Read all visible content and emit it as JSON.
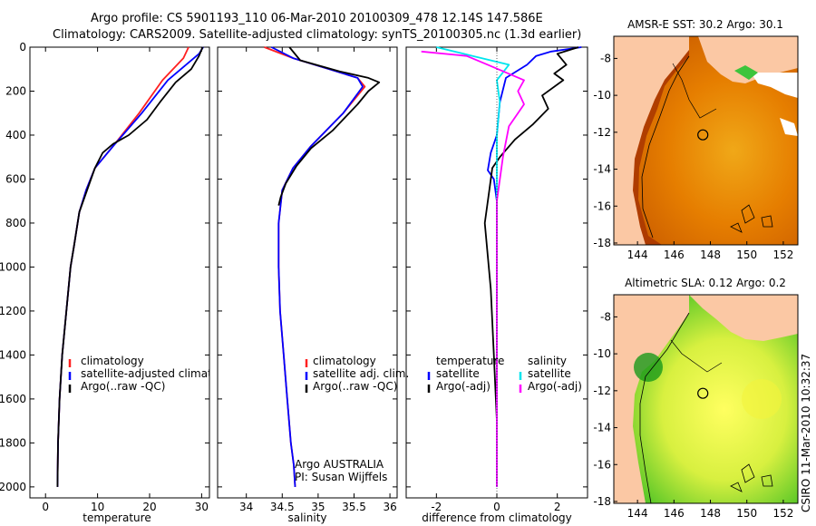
{
  "header": {
    "line1": "Argo profile: CS 5901193_110 06-Mar-2010 20100309_478 12.14S 147.586E",
    "line2": "Climatology: CARS2009. Satellite-adjusted climatology: synTS_20100305.nc (1.3d earlier)"
  },
  "stamp": "CSIRO 11-Mar-2010 10:32:37",
  "colors": {
    "climatology": "#ff2020",
    "satellite_adjusted": "#0000ff",
    "argo": "#000000",
    "salinity_satellite": "#00e5ee",
    "salinity_argo": "#ff00ff",
    "land": "#fbc8a4",
    "sst_warm": "#a83500",
    "sst_mid": "#e67e00",
    "sst_cool": "#f0a818",
    "sla_high": "#ffff60",
    "sla_low": "#1a9a1a"
  },
  "chart_data": [
    {
      "type": "line",
      "id": "temperature",
      "xlabel": "temperature",
      "ylabel": "",
      "xlim": [
        -3,
        31.5
      ],
      "ylim": [
        0,
        2050
      ],
      "yreversed": true,
      "xticks": [
        0,
        10,
        20,
        30
      ],
      "yticks": [
        0,
        200,
        400,
        600,
        800,
        1000,
        1200,
        1400,
        1600,
        1800,
        2000
      ],
      "legend": [
        "climatology",
        "satellite-adjusted climatology",
        "Argo(..raw -QC)"
      ],
      "legend_position": "bottom-right",
      "series": [
        {
          "name": "climatology",
          "color_key": "climatology",
          "x": [
            27.5,
            26.5,
            22.5,
            18,
            13,
            9.5,
            7.8,
            6.5,
            5.5,
            4.8,
            4,
            3.2,
            2.7,
            2.4,
            2.3
          ],
          "y": [
            0,
            50,
            150,
            300,
            450,
            550,
            650,
            750,
            900,
            1000,
            1200,
            1400,
            1600,
            1800,
            2000
          ]
        },
        {
          "name": "satellite-adjusted climatology",
          "color_key": "satellite_adjusted",
          "x": [
            30.3,
            29.5,
            23.5,
            18.5,
            13,
            9.5,
            7.8,
            6.5,
            5.5,
            4.8,
            4,
            3.2,
            2.7,
            2.4,
            2.3
          ],
          "y": [
            0,
            30,
            150,
            300,
            450,
            550,
            650,
            750,
            900,
            1000,
            1200,
            1400,
            1600,
            1800,
            2000
          ]
        },
        {
          "name": "Argo(..raw -QC)",
          "color_key": "argo",
          "x": [
            30.2,
            29.5,
            28,
            25,
            22,
            19.5,
            16,
            13,
            11,
            9.5,
            8,
            6.5,
            5.5,
            4.8,
            4,
            3.2,
            2.7,
            2.4,
            2.3
          ],
          "y": [
            0,
            40,
            100,
            160,
            250,
            330,
            400,
            440,
            480,
            550,
            650,
            750,
            900,
            1000,
            1200,
            1400,
            1600,
            1800,
            2000
          ]
        }
      ]
    },
    {
      "type": "line",
      "id": "salinity",
      "xlabel": "salinity",
      "ylabel": "",
      "xlim": [
        33.6,
        36.1
      ],
      "ylim": [
        0,
        2050
      ],
      "yreversed": true,
      "xticks": [
        34,
        34.5,
        35,
        35.5,
        36
      ],
      "xticklabels": [
        "34",
        "34.5",
        "35",
        "35.5",
        "36"
      ],
      "legend": [
        "climatology",
        "satellite adj. clim.",
        "Argo(..raw -QC)"
      ],
      "legend_position": "bottom-right",
      "annotations": [
        "Argo AUSTRALIA",
        "PI: Susan Wijffels"
      ],
      "series": [
        {
          "name": "climatology",
          "color_key": "climatology",
          "x": [
            34.25,
            34.65,
            35.15,
            35.55,
            35.65,
            35.35,
            34.9,
            34.65,
            34.5,
            34.45,
            34.45,
            34.47,
            34.52,
            34.57,
            34.62,
            34.66,
            34.68
          ],
          "y": [
            0,
            50,
            100,
            140,
            180,
            300,
            450,
            550,
            650,
            800,
            1000,
            1200,
            1400,
            1600,
            1800,
            1900,
            2000
          ]
        },
        {
          "name": "satellite adj. clim.",
          "color_key": "satellite_adjusted",
          "x": [
            34.35,
            34.65,
            35.15,
            35.55,
            35.62,
            35.35,
            34.9,
            34.65,
            34.5,
            34.45,
            34.45,
            34.47,
            34.52,
            34.57,
            34.62,
            34.66,
            34.68
          ],
          "y": [
            0,
            50,
            100,
            140,
            180,
            300,
            450,
            550,
            650,
            800,
            1000,
            1200,
            1400,
            1600,
            1800,
            1900,
            2000
          ]
        },
        {
          "name": "Argo(..raw -QC)",
          "color_key": "argo",
          "x": [
            34.6,
            34.75,
            35.3,
            35.7,
            35.85,
            35.7,
            35.55,
            35.2,
            34.9,
            34.7,
            34.55,
            34.48,
            34.45
          ],
          "y": [
            0,
            60,
            110,
            140,
            160,
            200,
            260,
            380,
            460,
            540,
            620,
            680,
            720
          ]
        }
      ]
    },
    {
      "type": "line",
      "id": "difference",
      "xlabel": "difference from climatology",
      "ylabel": "",
      "xlim": [
        -3,
        3
      ],
      "ylim": [
        0,
        2050
      ],
      "yreversed": true,
      "xticks": [
        -2,
        0,
        2
      ],
      "legend_groups": [
        {
          "title": "temperature",
          "items": [
            "satellite",
            "Argo(-adj)"
          ]
        },
        {
          "title": "salinity",
          "items": [
            "satellite",
            "Argo(-adj)"
          ]
        }
      ],
      "legend_position": "bottom-right",
      "series": [
        {
          "name": "temperature satellite",
          "color_key": "satellite_adjusted",
          "x": [
            2.8,
            1.8,
            1.3,
            1.0,
            0.3,
            0.1,
            0.0,
            -0.2,
            -0.3,
            -0.1,
            0.0,
            0.0,
            0.0,
            0.0,
            0.0,
            0.0,
            0.0
          ],
          "y": [
            0,
            20,
            40,
            80,
            140,
            250,
            400,
            480,
            560,
            600,
            700,
            800,
            1000,
            1200,
            1500,
            1800,
            2000
          ]
        },
        {
          "name": "temperature Argo(-adj)",
          "color_key": "argo",
          "x": [
            2.7,
            2.0,
            2.3,
            1.9,
            2.2,
            1.5,
            1.7,
            1.2,
            0.6,
            0.1,
            -0.15,
            -0.25,
            -0.4,
            -0.2,
            -0.1,
            0.0,
            0.0
          ],
          "y": [
            0,
            30,
            80,
            120,
            150,
            220,
            280,
            350,
            420,
            500,
            550,
            650,
            800,
            1100,
            1400,
            1700,
            2000
          ]
        },
        {
          "name": "salinity satellite",
          "color_key": "salinity_satellite",
          "x": [
            -2.0,
            -0.8,
            0.4,
            0.0,
            0.1,
            0.0,
            0.0,
            0.0,
            0.0,
            0.0,
            0.0,
            0.0
          ],
          "y": [
            0,
            40,
            80,
            150,
            250,
            400,
            600,
            800,
            1000,
            1200,
            1600,
            2000
          ]
        },
        {
          "name": "salinity Argo(-adj)",
          "color_key": "salinity_argo",
          "x": [
            -2.5,
            -1.0,
            -0.3,
            0.9,
            0.7,
            0.9,
            0.4,
            0.2,
            0.0,
            0.0,
            0.0,
            0.0
          ],
          "y": [
            20,
            40,
            80,
            150,
            200,
            260,
            360,
            500,
            700,
            1000,
            1500,
            2000
          ]
        }
      ]
    },
    {
      "type": "heatmap",
      "id": "sst_map",
      "title": "AMSR-E SST: 30.2 Argo: 30.1",
      "xlim": [
        142.7,
        152.8
      ],
      "ylim": [
        -18.1,
        -6.8
      ],
      "xticks": [
        144,
        146,
        148,
        150,
        152
      ],
      "yticks": [
        -8,
        -10,
        -12,
        -14,
        -16,
        -18
      ],
      "marker": {
        "lon": 147.586,
        "lat": -12.14
      }
    },
    {
      "type": "heatmap",
      "id": "sla_map",
      "title": "Altimetric SLA: 0.12 Argo: 0.2",
      "xlim": [
        142.7,
        152.8
      ],
      "ylim": [
        -18.1,
        -6.8
      ],
      "xticks": [
        144,
        146,
        148,
        150,
        152
      ],
      "yticks": [
        -8,
        -10,
        -12,
        -14,
        -16,
        -18
      ],
      "marker": {
        "lon": 147.586,
        "lat": -12.14
      }
    }
  ]
}
